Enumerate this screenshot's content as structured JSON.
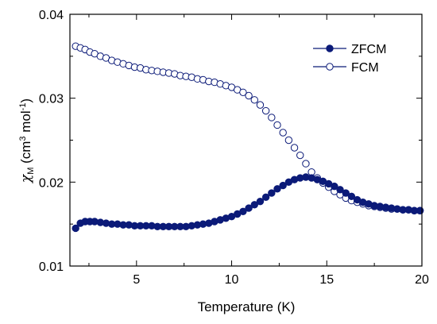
{
  "chart_data": {
    "type": "scatter",
    "title": "",
    "xlabel": "Temperature (K)",
    "ylabel": {
      "chi": "χ",
      "sub": "M",
      "units_open": " (cm",
      "units_sup1": "3",
      "units_mid": " mol",
      "units_sup2": "-1",
      "units_close": ")"
    },
    "xlim": [
      1.5,
      20
    ],
    "ylim": [
      0.01,
      0.04
    ],
    "x_ticks": [
      5,
      10,
      15,
      20
    ],
    "x_tick_labels": [
      "5",
      "10",
      "15",
      "20"
    ],
    "y_ticks": [
      0.01,
      0.02,
      0.03,
      0.04
    ],
    "y_tick_labels": [
      "0.01",
      "0.02",
      "0.03",
      "0.04"
    ],
    "x_minor_ticks": [
      2.5,
      7.5,
      12.5,
      17.5
    ],
    "y_minor_ticks": [
      0.015,
      0.025,
      0.035
    ],
    "grid": false,
    "legend_position": "top-right",
    "colors": {
      "series": "#0b1a78",
      "axis": "#000000"
    },
    "series": [
      {
        "name": "ZFCM",
        "marker": "filled-circle",
        "x": [
          1.8,
          2.05,
          2.3,
          2.55,
          2.8,
          3.1,
          3.4,
          3.7,
          4.0,
          4.3,
          4.6,
          4.9,
          5.2,
          5.5,
          5.8,
          6.1,
          6.4,
          6.7,
          7.0,
          7.3,
          7.6,
          7.9,
          8.2,
          8.5,
          8.8,
          9.1,
          9.4,
          9.7,
          10.0,
          10.3,
          10.6,
          10.9,
          11.2,
          11.5,
          11.8,
          12.1,
          12.4,
          12.7,
          13.0,
          13.3,
          13.6,
          13.9,
          14.2,
          14.5,
          14.8,
          15.1,
          15.4,
          15.7,
          16.0,
          16.3,
          16.6,
          16.9,
          17.2,
          17.5,
          17.8,
          18.1,
          18.4,
          18.7,
          19.0,
          19.3,
          19.6,
          19.9
        ],
        "y": [
          0.0145,
          0.0151,
          0.0153,
          0.0153,
          0.0153,
          0.0152,
          0.0151,
          0.015,
          0.015,
          0.0149,
          0.0149,
          0.0148,
          0.0148,
          0.0148,
          0.0148,
          0.0147,
          0.0147,
          0.0147,
          0.0147,
          0.0147,
          0.0147,
          0.0148,
          0.0149,
          0.015,
          0.0151,
          0.0153,
          0.0155,
          0.0157,
          0.0159,
          0.0162,
          0.0165,
          0.0169,
          0.0173,
          0.0177,
          0.0182,
          0.0187,
          0.0192,
          0.0196,
          0.02,
          0.0203,
          0.0205,
          0.0206,
          0.0205,
          0.0203,
          0.0201,
          0.0198,
          0.0195,
          0.0191,
          0.0187,
          0.0183,
          0.0179,
          0.0176,
          0.0174,
          0.0172,
          0.0171,
          0.017,
          0.0169,
          0.0168,
          0.0167,
          0.0167,
          0.0166,
          0.0166
        ]
      },
      {
        "name": "FCM",
        "marker": "open-circle",
        "x": [
          1.8,
          2.05,
          2.3,
          2.55,
          2.8,
          3.1,
          3.4,
          3.7,
          4.0,
          4.3,
          4.6,
          4.9,
          5.2,
          5.5,
          5.8,
          6.1,
          6.4,
          6.7,
          7.0,
          7.3,
          7.6,
          7.9,
          8.2,
          8.5,
          8.8,
          9.1,
          9.4,
          9.7,
          10.0,
          10.3,
          10.6,
          10.9,
          11.2,
          11.5,
          11.8,
          12.1,
          12.4,
          12.7,
          13.0,
          13.3,
          13.6,
          13.9,
          14.2,
          14.5,
          14.8,
          15.1,
          15.4,
          15.7,
          16.0,
          16.3,
          16.6,
          16.9,
          17.2,
          17.5,
          17.8,
          18.1,
          18.4,
          18.7,
          19.0,
          19.3,
          19.6,
          19.9
        ],
        "y": [
          0.0362,
          0.036,
          0.0358,
          0.0355,
          0.0353,
          0.035,
          0.0348,
          0.0345,
          0.0343,
          0.0341,
          0.0339,
          0.0337,
          0.0336,
          0.0334,
          0.0333,
          0.0332,
          0.0331,
          0.033,
          0.0329,
          0.0327,
          0.0326,
          0.0325,
          0.0323,
          0.0322,
          0.032,
          0.0319,
          0.0317,
          0.0315,
          0.0313,
          0.031,
          0.0307,
          0.0303,
          0.0298,
          0.0292,
          0.0285,
          0.0277,
          0.0268,
          0.0259,
          0.025,
          0.0241,
          0.0232,
          0.0222,
          0.0212,
          0.0205,
          0.0199,
          0.0194,
          0.0189,
          0.0185,
          0.0181,
          0.0178,
          0.0176,
          0.0174,
          0.0172,
          0.0171,
          0.017,
          0.0169,
          0.0168,
          0.0168,
          0.0167,
          0.0167,
          0.0166,
          0.0166
        ]
      }
    ]
  }
}
